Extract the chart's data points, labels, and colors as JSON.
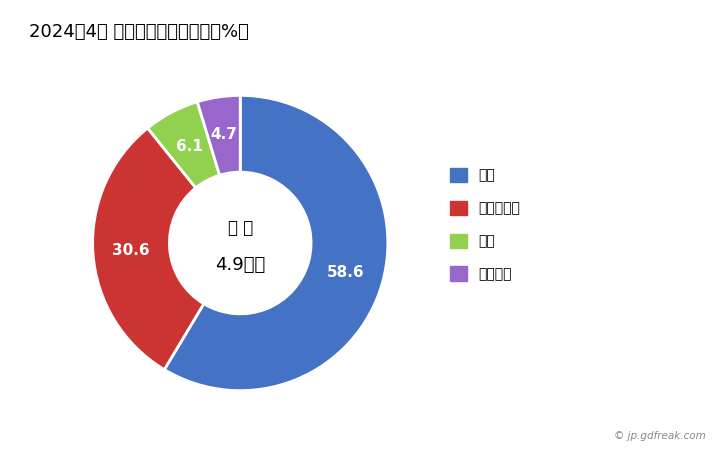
{
  "title": "2024年4月 輸出相手国のシェア（%）",
  "labels": [
    "韓国",
    "フィリピン",
    "台湾",
    "モンゴル"
  ],
  "values": [
    58.6,
    30.6,
    6.1,
    4.7
  ],
  "colors": [
    "#4472C4",
    "#CC3333",
    "#92D050",
    "#9966CC"
  ],
  "center_text_line1": "総 額",
  "center_text_line2": "4.9億円",
  "copyright": "© jp.gdfreak.com",
  "background_color": "#ffffff",
  "title_fontsize": 13,
  "legend_fontsize": 10,
  "label_fontsize": 11
}
